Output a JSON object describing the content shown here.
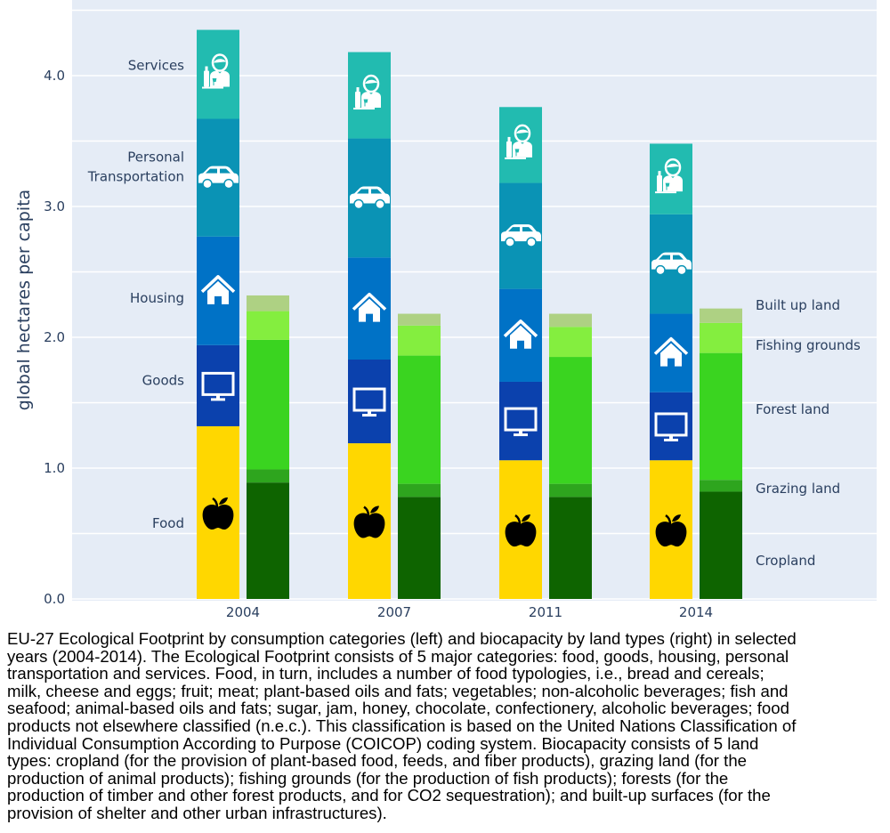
{
  "chart_data": {
    "type": "bar",
    "stacked": true,
    "title": "",
    "xlabel": "",
    "ylabel": "global hectares per capita",
    "ylim": [
      0,
      4.6
    ],
    "yticks": [
      {
        "value": 0,
        "label": "0.0"
      },
      {
        "value": 1,
        "label": "1.0"
      },
      {
        "value": 2,
        "label": "2.0"
      },
      {
        "value": 3,
        "label": "3.0"
      },
      {
        "value": 4,
        "label": "4.0"
      }
    ],
    "minor_gridlines": [
      0.5,
      1.5,
      2.5,
      3.5,
      4.5
    ],
    "grid": true,
    "categories": [
      "2004",
      "2007",
      "2011",
      "2014"
    ],
    "groups": [
      {
        "name": "Ecological Footprint",
        "position": "left",
        "series": [
          {
            "name": "Food",
            "color": "#ffd700",
            "icon": "apple-icon",
            "icon_color": "#000000",
            "values": [
              1.32,
              1.19,
              1.06,
              1.06
            ]
          },
          {
            "name": "Goods",
            "color": "#0b41ad",
            "icon": "monitor-icon",
            "icon_color": "#ffffff",
            "values": [
              0.62,
              0.64,
              0.6,
              0.52
            ]
          },
          {
            "name": "Housing",
            "color": "#0072c6",
            "icon": "house-icon",
            "icon_color": "#ffffff",
            "values": [
              0.83,
              0.78,
              0.71,
              0.6
            ]
          },
          {
            "name": "Personal Transportation",
            "color": "#0a93b5",
            "icon": "car-icon",
            "icon_color": "#ffffff",
            "values": [
              0.9,
              0.91,
              0.81,
              0.76
            ]
          },
          {
            "name": "Services",
            "color": "#22bbb0",
            "icon": "waiter-icon",
            "icon_color": "#ffffff",
            "values": [
              0.68,
              0.66,
              0.58,
              0.54
            ]
          }
        ],
        "labels": [
          {
            "series": "Food",
            "lines": [
              "Food"
            ]
          },
          {
            "series": "Goods",
            "lines": [
              "Goods"
            ]
          },
          {
            "series": "Housing",
            "lines": [
              "Housing"
            ]
          },
          {
            "series": "Personal Transportation",
            "lines": [
              "Personal",
              "Transportation"
            ]
          },
          {
            "series": "Services",
            "lines": [
              "Services"
            ]
          }
        ]
      },
      {
        "name": "Biocapacity",
        "position": "right",
        "series": [
          {
            "name": "Cropland",
            "color": "#0e6400",
            "values": [
              0.89,
              0.78,
              0.78,
              0.82
            ]
          },
          {
            "name": "Grazing land",
            "color": "#2ea51e",
            "values": [
              0.1,
              0.1,
              0.1,
              0.09
            ]
          },
          {
            "name": "Forest land",
            "color": "#3ad420",
            "values": [
              0.99,
              0.98,
              0.97,
              0.97
            ]
          },
          {
            "name": "Fishing grounds",
            "color": "#84ee3f",
            "values": [
              0.22,
              0.23,
              0.23,
              0.23
            ]
          },
          {
            "name": "Built up land",
            "color": "#aed183",
            "values": [
              0.12,
              0.09,
              0.1,
              0.11
            ]
          }
        ],
        "labels": [
          {
            "series": "Built up land",
            "lines": [
              "Built up land"
            ]
          },
          {
            "series": "Fishing grounds",
            "lines": [
              "Fishing grounds"
            ]
          },
          {
            "series": "Forest land",
            "lines": [
              "Forest land"
            ]
          },
          {
            "series": "Grazing land",
            "lines": [
              "Grazing land"
            ]
          },
          {
            "series": "Cropland",
            "lines": [
              "Cropland"
            ]
          }
        ]
      }
    ],
    "colors": {
      "plot_bg": "#e5ecf6",
      "grid": "#ffffff",
      "text": "#2a3f5f"
    }
  },
  "caption": {
    "lines": [
      "EU-27 Ecological Footprint by consumption categories (left) and biocapacity by land types (right) in selected",
      "years (2004-2014). The Ecological Footprint consists of 5 major categories: food, goods, housing, personal",
      "transportation and services. Food, in turn, includes a number of food typologies, i.e., bread and cereals;",
      "milk, cheese and eggs; fruit; meat; plant-based oils and fats; vegetables; non-alcoholic beverages; fish and",
      "seafood; animal-based oils and fats; sugar, jam, honey, chocolate, confectionery, alcoholic beverages; food",
      "products not elsewhere classified (n.e.c.). This classification is based on the United Nations Classification of",
      "Individual Consumption According to Purpose (COICOP) coding system. Biocapacity consists of 5 land",
      "types: cropland (for the provision of plant-based food, feeds, and fiber products), grazing land (for the",
      "production of animal products); fishing grounds (for the production of fish products); forests (for the",
      "production of timber and other forest products, and for CO2 sequestration); and built-up surfaces (for the",
      "provision of shelter and other urban infrastructures)."
    ]
  }
}
